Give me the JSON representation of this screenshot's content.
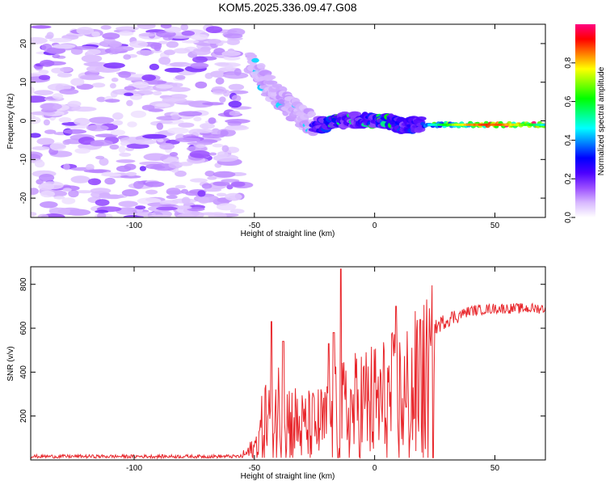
{
  "title": "KOM5.2025.336.09.47.G08",
  "chart_data": [
    {
      "type": "heatmap",
      "name": "spectrogram",
      "xlabel": "Height of straight line (km)",
      "ylabel": "Frequency (Hz)",
      "xlim": [
        -143,
        71
      ],
      "ylim": [
        -25,
        25
      ],
      "xticks": [
        -100,
        -50,
        0,
        50
      ],
      "yticks": [
        -20,
        -10,
        0,
        10,
        20
      ],
      "colorbar": {
        "label": "Normalized spectral amplitude",
        "range": [
          0,
          1
        ],
        "ticks": [
          "0.0",
          "0.2",
          "0.4",
          "0.6",
          "0.8"
        ],
        "tick_values": [
          0.0,
          0.2,
          0.4,
          0.6,
          0.8
        ],
        "colormap": [
          "#ffffff",
          "#d8b8ff",
          "#9a4dff",
          "#4b00ff",
          "#0000ff",
          "#0080ff",
          "#00ffff",
          "#00ff80",
          "#00ff00",
          "#80ff00",
          "#ffff00",
          "#ff8000",
          "#ff0000",
          "#ff0080"
        ]
      },
      "ridge": [
        {
          "x": -52,
          "y": 15
        },
        {
          "x": -48,
          "y": 12
        },
        {
          "x": -44,
          "y": 9
        },
        {
          "x": -40,
          "y": 6
        },
        {
          "x": -36,
          "y": 4
        },
        {
          "x": -32,
          "y": 2
        },
        {
          "x": -28,
          "y": 0
        },
        {
          "x": -24,
          "y": -1
        },
        {
          "x": -20,
          "y": -1
        },
        {
          "x": -15,
          "y": 0
        },
        {
          "x": -10,
          "y": 0
        },
        {
          "x": -5,
          "y": 0.5
        },
        {
          "x": 0,
          "y": 0
        },
        {
          "x": 5,
          "y": 0
        },
        {
          "x": 10,
          "y": -1
        },
        {
          "x": 15,
          "y": -1
        },
        {
          "x": 20,
          "y": -1
        },
        {
          "x": 30,
          "y": -1
        },
        {
          "x": 40,
          "y": -1
        },
        {
          "x": 50,
          "y": -1
        },
        {
          "x": 60,
          "y": -1
        },
        {
          "x": 71,
          "y": -1
        }
      ]
    },
    {
      "type": "line",
      "name": "snr",
      "xlabel": "Height of straight line (km)",
      "ylabel": "SNR (v/v)",
      "xlim": [
        -143,
        71
      ],
      "ylim": [
        0,
        880
      ],
      "xticks": [
        -100,
        -50,
        0,
        50
      ],
      "yticks": [
        200,
        400,
        600,
        800
      ],
      "line_color": "#e8262b",
      "envelope": [
        {
          "x": -143,
          "y": 15
        },
        {
          "x": -60,
          "y": 15
        },
        {
          "x": -55,
          "y": 30
        },
        {
          "x": -50,
          "y": 80
        },
        {
          "x": -45,
          "y": 300
        },
        {
          "x": -40,
          "y": 350
        },
        {
          "x": -35,
          "y": 280
        },
        {
          "x": -30,
          "y": 230
        },
        {
          "x": -25,
          "y": 240
        },
        {
          "x": -20,
          "y": 260
        },
        {
          "x": -15,
          "y": 330
        },
        {
          "x": -10,
          "y": 340
        },
        {
          "x": -5,
          "y": 400
        },
        {
          "x": 0,
          "y": 400
        },
        {
          "x": 5,
          "y": 420
        },
        {
          "x": 10,
          "y": 440
        },
        {
          "x": 15,
          "y": 480
        },
        {
          "x": 20,
          "y": 530
        },
        {
          "x": 25,
          "y": 600
        },
        {
          "x": 30,
          "y": 640
        },
        {
          "x": 35,
          "y": 660
        },
        {
          "x": 40,
          "y": 680
        },
        {
          "x": 50,
          "y": 690
        },
        {
          "x": 60,
          "y": 690
        },
        {
          "x": 71,
          "y": 690
        }
      ],
      "peaks": [
        {
          "x": -43,
          "y": 630
        },
        {
          "x": -38,
          "y": 540
        },
        {
          "x": -14,
          "y": 870
        },
        {
          "x": -17,
          "y": 580
        },
        {
          "x": -19,
          "y": 530
        },
        {
          "x": 9,
          "y": 700
        },
        {
          "x": 13,
          "y": 240
        },
        {
          "x": 19,
          "y": 640
        }
      ]
    }
  ]
}
